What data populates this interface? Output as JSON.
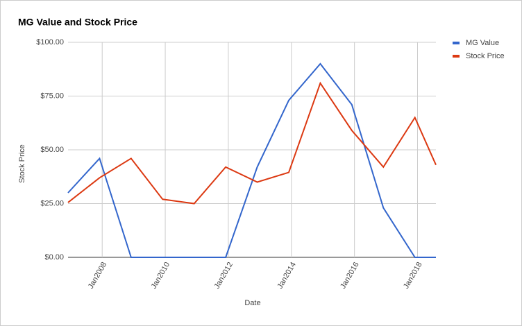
{
  "chart_data": {
    "type": "line",
    "title": "MG Value and Stock Price",
    "x_label": "Date",
    "y_label": "Stock Price",
    "x": [
      "2006-12",
      "2007-12",
      "2008-12",
      "2009-12",
      "2010-12",
      "2011-12",
      "2012-12",
      "2013-12",
      "2014-12",
      "2015-12",
      "2016-12",
      "2017-12",
      "2018-08"
    ],
    "series": [
      {
        "name": "MG Value",
        "color": "#3366cc",
        "values": [
          30,
          46,
          0,
          0,
          0,
          0,
          42,
          73,
          90,
          71,
          23,
          0,
          0
        ]
      },
      {
        "name": "Stock Price",
        "color": "#dc3912",
        "values": [
          25.5,
          37,
          46,
          27,
          25,
          42,
          35,
          39.5,
          81,
          59,
          42,
          65,
          43
        ]
      }
    ],
    "xlim": [
      "2006-12",
      "2018-08"
    ],
    "xticks": [
      {
        "value": "2008-01",
        "label": "Jan2008"
      },
      {
        "value": "2010-01",
        "label": "Jan2010"
      },
      {
        "value": "2012-01",
        "label": "Jan2012"
      },
      {
        "value": "2014-01",
        "label": "Jan2014"
      },
      {
        "value": "2016-01",
        "label": "Jan2016"
      },
      {
        "value": "2018-01",
        "label": "Jan2018"
      }
    ],
    "ylim": [
      0,
      100
    ],
    "yticks": [
      {
        "value": 0,
        "label": "$0.00"
      },
      {
        "value": 25,
        "label": "$25.00"
      },
      {
        "value": 50,
        "label": "$50.00"
      },
      {
        "value": 75,
        "label": "$75.00"
      },
      {
        "value": 100,
        "label": "$100.00"
      }
    ],
    "grid": true,
    "legend": "right"
  }
}
